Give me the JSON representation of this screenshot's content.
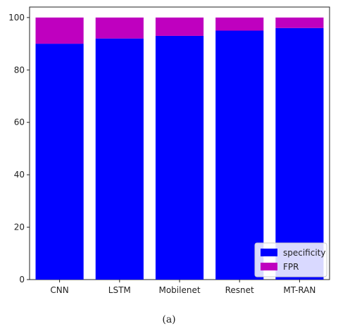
{
  "chart_data": {
    "type": "bar",
    "stacked": true,
    "categories": [
      "CNN",
      "LSTM",
      "Mobilenet",
      "Resnet",
      "MT-RAN"
    ],
    "series": [
      {
        "name": "specificity",
        "color": "#0000ff",
        "values": [
          90,
          92,
          93,
          95,
          96
        ]
      },
      {
        "name": "FPR",
        "color": "#bf00bf",
        "values": [
          10,
          8,
          7,
          5,
          4
        ]
      }
    ],
    "ylim": [
      0,
      104
    ],
    "yticks": [
      0,
      20,
      40,
      60,
      80,
      100
    ],
    "grid": false,
    "legend_position": "bottom-right"
  },
  "caption": "(a)"
}
